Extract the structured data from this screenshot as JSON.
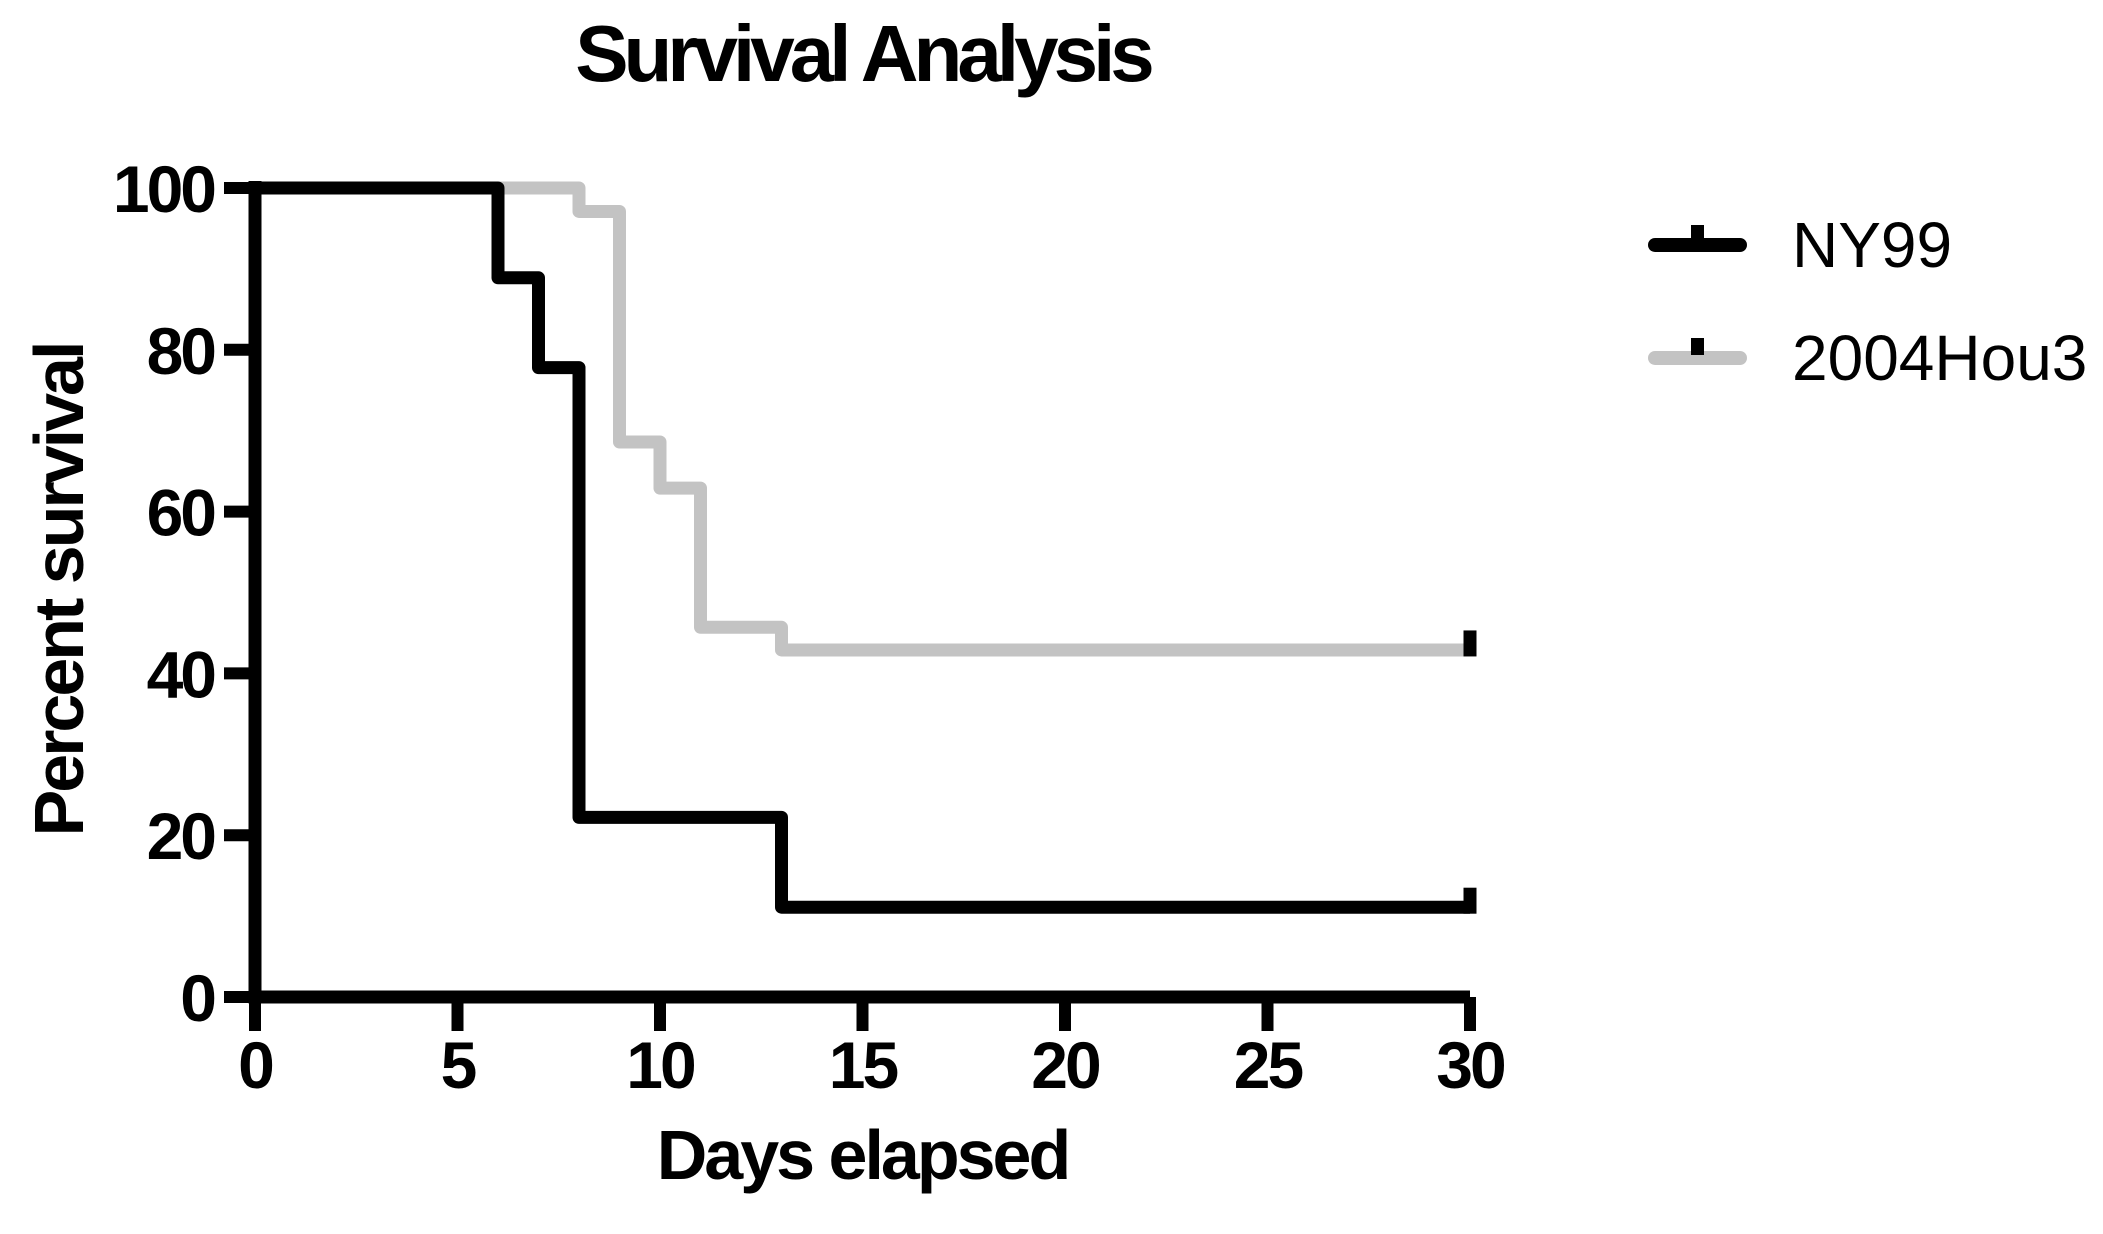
{
  "title": "Survival Analysis",
  "chart_data": {
    "type": "line",
    "subtype": "kaplan-meier-step-survival",
    "title": "Survival Analysis",
    "xlabel": "Days elapsed",
    "ylabel": "Percent survival",
    "xlim": [
      0,
      30
    ],
    "ylim": [
      0,
      100
    ],
    "x_ticks": [
      0,
      5,
      10,
      15,
      20,
      25,
      30
    ],
    "y_ticks": [
      0,
      20,
      40,
      60,
      80,
      100
    ],
    "grid": false,
    "legend_position": "right",
    "axis_color": "#000000",
    "series": [
      {
        "name": "NY99",
        "color": "#000000",
        "points": [
          [
            0,
            100
          ],
          [
            6,
            100
          ],
          [
            6,
            88.9
          ],
          [
            7,
            88.9
          ],
          [
            7,
            77.8
          ],
          [
            8,
            77.8
          ],
          [
            8,
            22.2
          ],
          [
            13,
            22.2
          ],
          [
            13,
            11.1
          ],
          [
            30,
            11.1
          ]
        ],
        "censor_marks": [
          {
            "x": 30,
            "y": 11.1,
            "color": "#000000"
          }
        ]
      },
      {
        "name": "2004Hou3",
        "color": "#c3c3c3",
        "points": [
          [
            0,
            100
          ],
          [
            8,
            100
          ],
          [
            8,
            97.1
          ],
          [
            9,
            97.1
          ],
          [
            9,
            68.6
          ],
          [
            10,
            68.6
          ],
          [
            10,
            62.9
          ],
          [
            11,
            62.9
          ],
          [
            11,
            45.7
          ],
          [
            13,
            45.7
          ],
          [
            13,
            42.9
          ],
          [
            30,
            42.9
          ]
        ],
        "censor_marks": [
          {
            "x": 30,
            "y": 42.9,
            "color": "#000000"
          }
        ]
      }
    ]
  },
  "legend": {
    "items": [
      {
        "label": "NY99",
        "line_color": "#000000",
        "tick_color": "#000000"
      },
      {
        "label": "2004Hou3",
        "line_color": "#c3c3c3",
        "tick_color": "#000000"
      }
    ]
  }
}
